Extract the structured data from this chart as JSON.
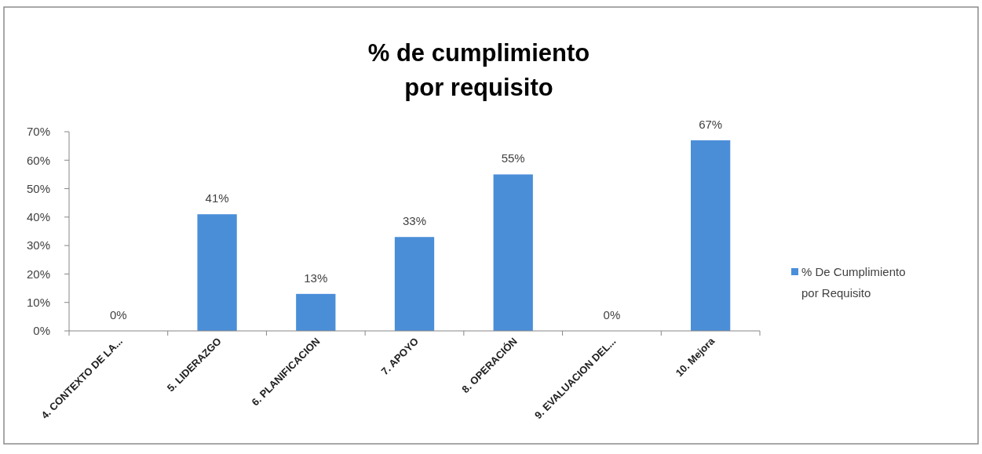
{
  "chart_data": {
    "type": "bar",
    "title": "% de cumplimiento por requisito",
    "categories": [
      "4. CONTEXTO DE LA...",
      "5. LIDERAZGO",
      "6. PLANIFICACION",
      "7. APOYO",
      "8. OPERACIÓN",
      "9. EVALUACION DEL...",
      "10. Mejora"
    ],
    "series": [
      {
        "name": "% De Cumplimiento por Requisito",
        "color": "#4a8ed8",
        "values": [
          0,
          41,
          13,
          33,
          55,
          0,
          67
        ],
        "value_labels": [
          "0%",
          "41%",
          "13%",
          "33%",
          "55%",
          "0%",
          "67%"
        ]
      }
    ],
    "ylim": [
      0,
      70
    ],
    "yticks": [
      {
        "value": 0,
        "label": "0%"
      },
      {
        "value": 10,
        "label": "10%"
      },
      {
        "value": 20,
        "label": "20%"
      },
      {
        "value": 30,
        "label": "30%"
      },
      {
        "value": 40,
        "label": "40%"
      },
      {
        "value": 50,
        "label": "50%"
      },
      {
        "value": 60,
        "label": "60%"
      },
      {
        "value": 70,
        "label": "70%"
      }
    ],
    "legend": "right"
  }
}
